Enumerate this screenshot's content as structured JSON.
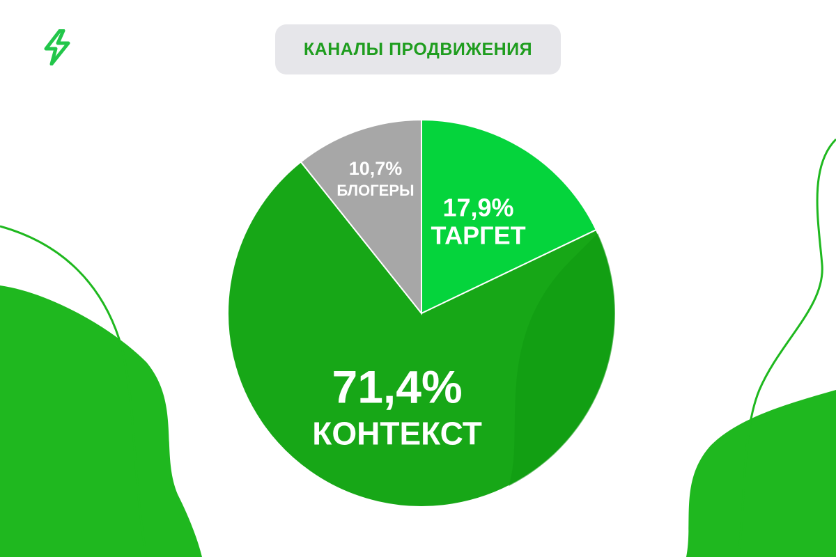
{
  "title": "КАНАЛЫ ПРОДВИЖЕНИЯ",
  "colors": {
    "title": "#1f9d1f",
    "pill": "#e6e6ea",
    "context": "#17a717",
    "context_shade": "#0f9a10",
    "target": "#05d43c",
    "bloggers": "#a7a7a7",
    "decor": "#1fb81f",
    "logo": "#22c64a"
  },
  "logo_icon": "lightning-bolt-icon",
  "chart_data": {
    "type": "pie",
    "title": "КАНАЛЫ ПРОДВИЖЕНИЯ",
    "slices": [
      {
        "label": "ТАРГЕТ",
        "value": 17.9,
        "value_text": "17,9%",
        "color": "#05d43c"
      },
      {
        "label": "КОНТЕКСТ",
        "value": 71.4,
        "value_text": "71,4%",
        "color": "#17a717"
      },
      {
        "label": "БЛОГЕРЫ",
        "value": 10.7,
        "value_text": "10,7%",
        "color": "#a7a7a7"
      }
    ],
    "start": "top",
    "direction": "clockwise",
    "legend": "none"
  }
}
